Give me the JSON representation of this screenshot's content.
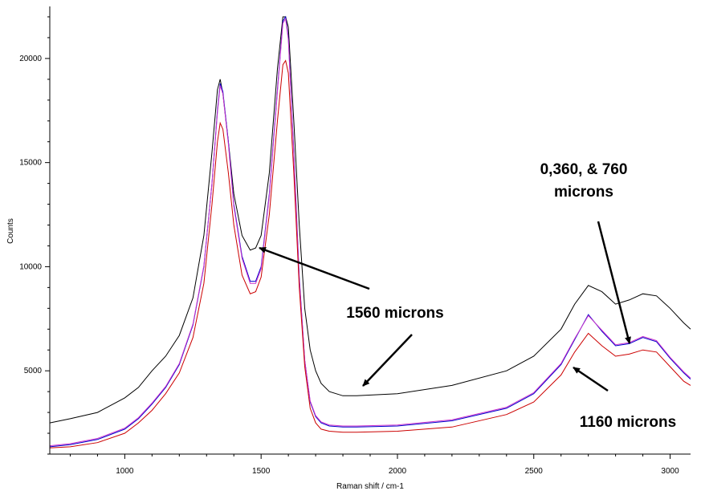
{
  "chart_data": {
    "type": "line",
    "title": "",
    "xlabel": "Raman shift / cm-1",
    "ylabel": "Counts",
    "xlim": [
      725,
      3075
    ],
    "ylim": [
      1000,
      22500
    ],
    "xticks": [
      1000,
      1500,
      2000,
      2500,
      3000
    ],
    "yticks": [
      5000,
      10000,
      15000,
      20000
    ],
    "grid": false,
    "legend": "none",
    "series": [
      {
        "color": "#000000",
        "x": [
          725,
          800,
          900,
          1000,
          1050,
          1100,
          1150,
          1200,
          1250,
          1290,
          1320,
          1340,
          1350,
          1360,
          1380,
          1400,
          1430,
          1460,
          1480,
          1500,
          1530,
          1560,
          1580,
          1590,
          1600,
          1620,
          1640,
          1660,
          1680,
          1700,
          1720,
          1750,
          1800,
          1850,
          2000,
          2200,
          2400,
          2500,
          2600,
          2650,
          2700,
          2750,
          2800,
          2850,
          2900,
          2950,
          3000,
          3050,
          3075
        ],
        "y": [
          2500,
          2700,
          3000,
          3700,
          4200,
          5000,
          5700,
          6700,
          8500,
          11500,
          15500,
          18500,
          19000,
          18300,
          16000,
          13500,
          11500,
          10800,
          10900,
          11500,
          14500,
          19500,
          22000,
          22000,
          21500,
          17000,
          12000,
          8000,
          6000,
          5000,
          4400,
          4000,
          3800,
          3800,
          3900,
          4300,
          5000,
          5700,
          7000,
          8200,
          9100,
          8800,
          8200,
          8400,
          8700,
          8600,
          8000,
          7300,
          7000
        ]
      },
      {
        "color": "#0000cc",
        "x": [
          725,
          800,
          900,
          1000,
          1050,
          1100,
          1150,
          1200,
          1250,
          1290,
          1320,
          1340,
          1350,
          1360,
          1380,
          1400,
          1430,
          1460,
          1480,
          1500,
          1530,
          1560,
          1580,
          1590,
          1600,
          1620,
          1640,
          1660,
          1680,
          1700,
          1720,
          1750,
          1800,
          1850,
          2000,
          2200,
          2400,
          2500,
          2600,
          2650,
          2700,
          2750,
          2800,
          2850,
          2900,
          2950,
          3000,
          3050,
          3075
        ],
        "y": [
          1350,
          1450,
          1700,
          2200,
          2700,
          3400,
          4200,
          5300,
          7200,
          10000,
          14000,
          17500,
          18800,
          18400,
          16000,
          13000,
          10500,
          9300,
          9300,
          10000,
          13500,
          18500,
          21800,
          22000,
          21000,
          15500,
          9500,
          5500,
          3500,
          2800,
          2500,
          2350,
          2300,
          2300,
          2350,
          2600,
          3200,
          3900,
          5300,
          6500,
          7700,
          6900,
          6200,
          6300,
          6600,
          6400,
          5600,
          4900,
          4600
        ]
      },
      {
        "color": "#cc33cc",
        "x": [
          725,
          800,
          900,
          1000,
          1050,
          1100,
          1150,
          1200,
          1250,
          1290,
          1320,
          1340,
          1350,
          1360,
          1380,
          1400,
          1430,
          1460,
          1480,
          1500,
          1530,
          1560,
          1580,
          1590,
          1600,
          1620,
          1640,
          1660,
          1680,
          1700,
          1720,
          1750,
          1800,
          1850,
          2000,
          2200,
          2400,
          2500,
          2600,
          2650,
          2700,
          2750,
          2800,
          2850,
          2900,
          2950,
          3000,
          3050,
          3075
        ],
        "y": [
          1400,
          1500,
          1750,
          2250,
          2750,
          3450,
          4250,
          5350,
          7250,
          10050,
          14000,
          17400,
          18700,
          18300,
          15900,
          12900,
          10400,
          9200,
          9200,
          9900,
          13400,
          18400,
          21700,
          21900,
          20900,
          15400,
          9400,
          5500,
          3550,
          2850,
          2550,
          2400,
          2350,
          2350,
          2400,
          2650,
          3250,
          3950,
          5350,
          6550,
          7650,
          6950,
          6250,
          6350,
          6650,
          6450,
          5650,
          4950,
          4650
        ]
      },
      {
        "color": "#cc0000",
        "x": [
          725,
          800,
          900,
          1000,
          1050,
          1100,
          1150,
          1200,
          1250,
          1290,
          1320,
          1340,
          1350,
          1360,
          1380,
          1400,
          1430,
          1460,
          1480,
          1500,
          1530,
          1560,
          1580,
          1590,
          1600,
          1620,
          1640,
          1660,
          1680,
          1700,
          1720,
          1750,
          1800,
          1850,
          2000,
          2200,
          2400,
          2500,
          2600,
          2650,
          2700,
          2750,
          2800,
          2850,
          2900,
          2950,
          3000,
          3050,
          3075
        ],
        "y": [
          1300,
          1350,
          1550,
          2000,
          2500,
          3100,
          3900,
          4900,
          6600,
          9200,
          13000,
          16000,
          16900,
          16600,
          14500,
          12000,
          9600,
          8700,
          8800,
          9500,
          12500,
          17000,
          19700,
          19900,
          19300,
          14500,
          9000,
          5200,
          3200,
          2500,
          2200,
          2100,
          2050,
          2050,
          2100,
          2300,
          2900,
          3500,
          4800,
          5900,
          6800,
          6200,
          5700,
          5800,
          6000,
          5900,
          5200,
          4500,
          4300
        ]
      }
    ],
    "annotations": [
      {
        "lines": [
          "0,360, & 760",
          "microns"
        ]
      },
      {
        "lines": [
          "1560 microns"
        ]
      },
      {
        "lines": [
          "1160 microns"
        ]
      }
    ]
  }
}
